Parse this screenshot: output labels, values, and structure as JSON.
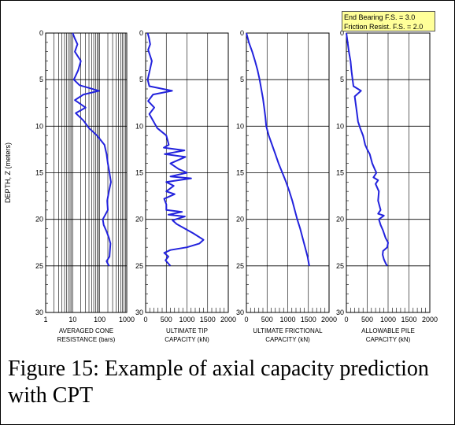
{
  "caption": "Figure 15: Example of axial capacity prediction with CPT",
  "fs_box": {
    "line1": "End Bearing F.S. = 3.0",
    "line2": "Friction Resist. F.S. = 2.0"
  },
  "chart_data": {
    "type": "line",
    "ylabel": "DEPTH, Z (meters)",
    "ylim": [
      0,
      30
    ],
    "y_inverted": true,
    "y_ticks": [
      "0",
      "5",
      "10",
      "15",
      "20",
      "25",
      "30"
    ],
    "line_color": "#2222dd",
    "panels": [
      {
        "name": "cone",
        "xlabel_lines": [
          "AVERAGED CONE",
          "RESISTANCE (bars)"
        ],
        "xscale": "log",
        "xlim": [
          1,
          1000
        ],
        "x_ticks": [
          "1",
          "10",
          "100",
          "1000"
        ],
        "points": [
          [
            10,
            0
          ],
          [
            12,
            0.6
          ],
          [
            15,
            1.2
          ],
          [
            12,
            2
          ],
          [
            20,
            3
          ],
          [
            16,
            4
          ],
          [
            11,
            5
          ],
          [
            18,
            5.6
          ],
          [
            95,
            6.2
          ],
          [
            25,
            6.6
          ],
          [
            12,
            7.2
          ],
          [
            30,
            8
          ],
          [
            13,
            8.6
          ],
          [
            25,
            9.4
          ],
          [
            40,
            10.2
          ],
          [
            80,
            11
          ],
          [
            150,
            12
          ],
          [
            180,
            13
          ],
          [
            200,
            14
          ],
          [
            230,
            15
          ],
          [
            260,
            16
          ],
          [
            220,
            17
          ],
          [
            190,
            18
          ],
          [
            200,
            19
          ],
          [
            130,
            20
          ],
          [
            140,
            20.6
          ],
          [
            180,
            21.3
          ],
          [
            220,
            22
          ],
          [
            250,
            22.6
          ],
          [
            240,
            23.3
          ],
          [
            230,
            24
          ],
          [
            180,
            24.5
          ],
          [
            220,
            25
          ]
        ]
      },
      {
        "name": "tip",
        "xlabel_lines": [
          "ULTIMATE TIP",
          "CAPACITY (kN)"
        ],
        "xscale": "linear",
        "xlim": [
          0,
          2000
        ],
        "x_ticks": [
          "0",
          "500",
          "1000",
          "1500",
          "2000"
        ],
        "points": [
          [
            50,
            0
          ],
          [
            80,
            0.5
          ],
          [
            110,
            1.2
          ],
          [
            60,
            1.8
          ],
          [
            150,
            3
          ],
          [
            100,
            4
          ],
          [
            50,
            5
          ],
          [
            90,
            5.7
          ],
          [
            640,
            6.2
          ],
          [
            180,
            6.6
          ],
          [
            60,
            7.3
          ],
          [
            210,
            8
          ],
          [
            90,
            8.7
          ],
          [
            180,
            9.4
          ],
          [
            280,
            10.2
          ],
          [
            500,
            11
          ],
          [
            560,
            12
          ],
          [
            440,
            12.3
          ],
          [
            940,
            12.6
          ],
          [
            460,
            13
          ],
          [
            960,
            13.3
          ],
          [
            600,
            14
          ],
          [
            800,
            14.6
          ],
          [
            1000,
            15
          ],
          [
            600,
            15.4
          ],
          [
            1100,
            15.6
          ],
          [
            500,
            16
          ],
          [
            680,
            16.4
          ],
          [
            500,
            17
          ],
          [
            700,
            17.3
          ],
          [
            450,
            17.8
          ],
          [
            500,
            18.4
          ],
          [
            500,
            19
          ],
          [
            880,
            19.2
          ],
          [
            550,
            19.5
          ],
          [
            950,
            19.7
          ],
          [
            650,
            20.1
          ],
          [
            750,
            20.5
          ],
          [
            950,
            21
          ],
          [
            1150,
            21.5
          ],
          [
            1400,
            22.2
          ],
          [
            1300,
            22.6
          ],
          [
            1000,
            23
          ],
          [
            600,
            23.3
          ],
          [
            450,
            23.6
          ],
          [
            550,
            24
          ],
          [
            480,
            24.4
          ],
          [
            560,
            24.8
          ],
          [
            600,
            25
          ]
        ]
      },
      {
        "name": "frictional",
        "xlabel_lines": [
          "ULTIMATE FRICTIONAL",
          "CAPACITY (kN)"
        ],
        "xscale": "linear",
        "xlim": [
          0,
          2000
        ],
        "x_ticks": [
          "0",
          "500",
          "1000",
          "1500",
          "2000"
        ],
        "points": [
          [
            0,
            0
          ],
          [
            60,
            1
          ],
          [
            140,
            2
          ],
          [
            210,
            3
          ],
          [
            270,
            4
          ],
          [
            320,
            5
          ],
          [
            360,
            6
          ],
          [
            400,
            7
          ],
          [
            430,
            8
          ],
          [
            460,
            9
          ],
          [
            480,
            10
          ],
          [
            540,
            11
          ],
          [
            620,
            12
          ],
          [
            700,
            13
          ],
          [
            780,
            14
          ],
          [
            870,
            15
          ],
          [
            960,
            16
          ],
          [
            1040,
            17
          ],
          [
            1110,
            18
          ],
          [
            1170,
            19
          ],
          [
            1230,
            20
          ],
          [
            1300,
            21
          ],
          [
            1360,
            22
          ],
          [
            1420,
            23
          ],
          [
            1480,
            24
          ],
          [
            1520,
            25
          ]
        ]
      },
      {
        "name": "allowable",
        "xlabel_lines": [
          "ALLOWABLE PILE",
          "CAPACITY (kN)"
        ],
        "xscale": "linear",
        "xlim": [
          0,
          2000
        ],
        "x_ticks": [
          "0",
          "500",
          "1000",
          "1500",
          "2000"
        ],
        "points": [
          [
            0,
            0
          ],
          [
            30,
            1
          ],
          [
            60,
            2
          ],
          [
            100,
            3
          ],
          [
            120,
            4
          ],
          [
            150,
            5
          ],
          [
            170,
            5.7
          ],
          [
            350,
            6.2
          ],
          [
            200,
            6.8
          ],
          [
            220,
            7.5
          ],
          [
            250,
            8.5
          ],
          [
            280,
            9.5
          ],
          [
            330,
            10.2
          ],
          [
            400,
            11
          ],
          [
            450,
            12
          ],
          [
            500,
            12.5
          ],
          [
            560,
            13
          ],
          [
            620,
            14
          ],
          [
            680,
            14.6
          ],
          [
            720,
            15
          ],
          [
            650,
            15.5
          ],
          [
            760,
            15.8
          ],
          [
            700,
            16.2
          ],
          [
            780,
            17
          ],
          [
            760,
            18
          ],
          [
            820,
            19
          ],
          [
            760,
            19.4
          ],
          [
            900,
            19.6
          ],
          [
            780,
            20
          ],
          [
            820,
            20.6
          ],
          [
            880,
            21.2
          ],
          [
            940,
            22
          ],
          [
            1000,
            22.5
          ],
          [
            980,
            23
          ],
          [
            880,
            23.4
          ],
          [
            870,
            23.8
          ],
          [
            900,
            24.3
          ],
          [
            950,
            24.8
          ],
          [
            980,
            25
          ]
        ]
      }
    ]
  }
}
